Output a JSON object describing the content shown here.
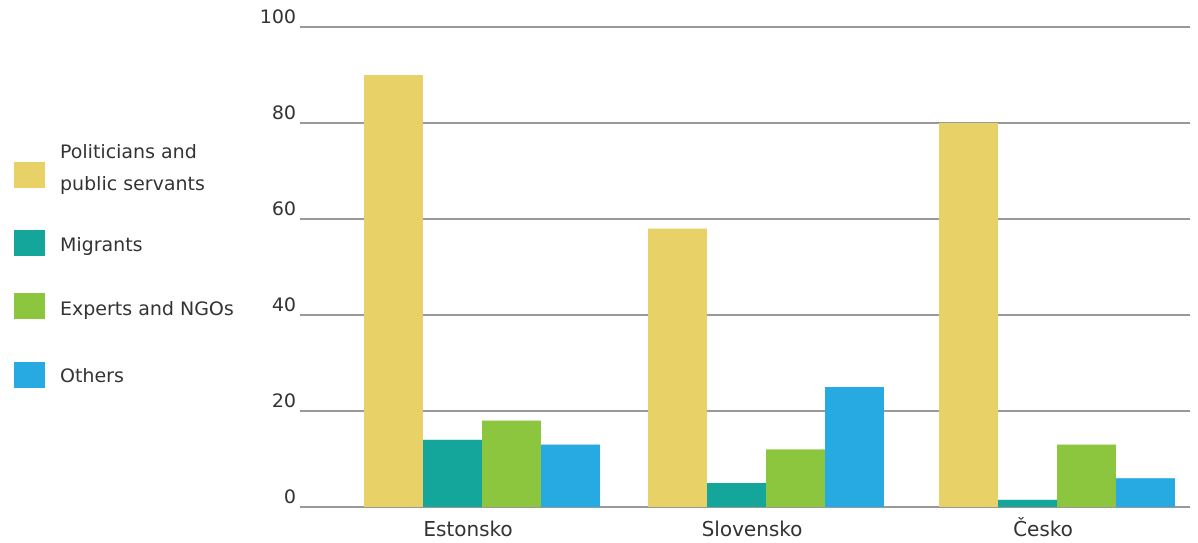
{
  "chart_data": {
    "type": "bar",
    "categories": [
      "Estonsko",
      "Slovensko",
      "Česko"
    ],
    "series": [
      {
        "name": "Politicians and public servants",
        "values": [
          90,
          58,
          80
        ],
        "color": "#E8D166"
      },
      {
        "name": "Migrants",
        "values": [
          14,
          5,
          1.5
        ],
        "color": "#14A59B"
      },
      {
        "name": "Experts and NGOs",
        "values": [
          18,
          12,
          13
        ],
        "color": "#8CC63F"
      },
      {
        "name": "Others",
        "values": [
          13,
          25,
          6
        ],
        "color": "#27A9E1"
      }
    ],
    "legend_lines": [
      [
        "Politicians and",
        "public servants"
      ],
      [
        "Migrants"
      ],
      [
        "Experts and NGOs"
      ],
      [
        "Others"
      ]
    ],
    "yticks": [
      0,
      20,
      40,
      60,
      80,
      100
    ],
    "ylim": [
      0,
      100
    ],
    "grid": true,
    "legend_position": "left"
  }
}
